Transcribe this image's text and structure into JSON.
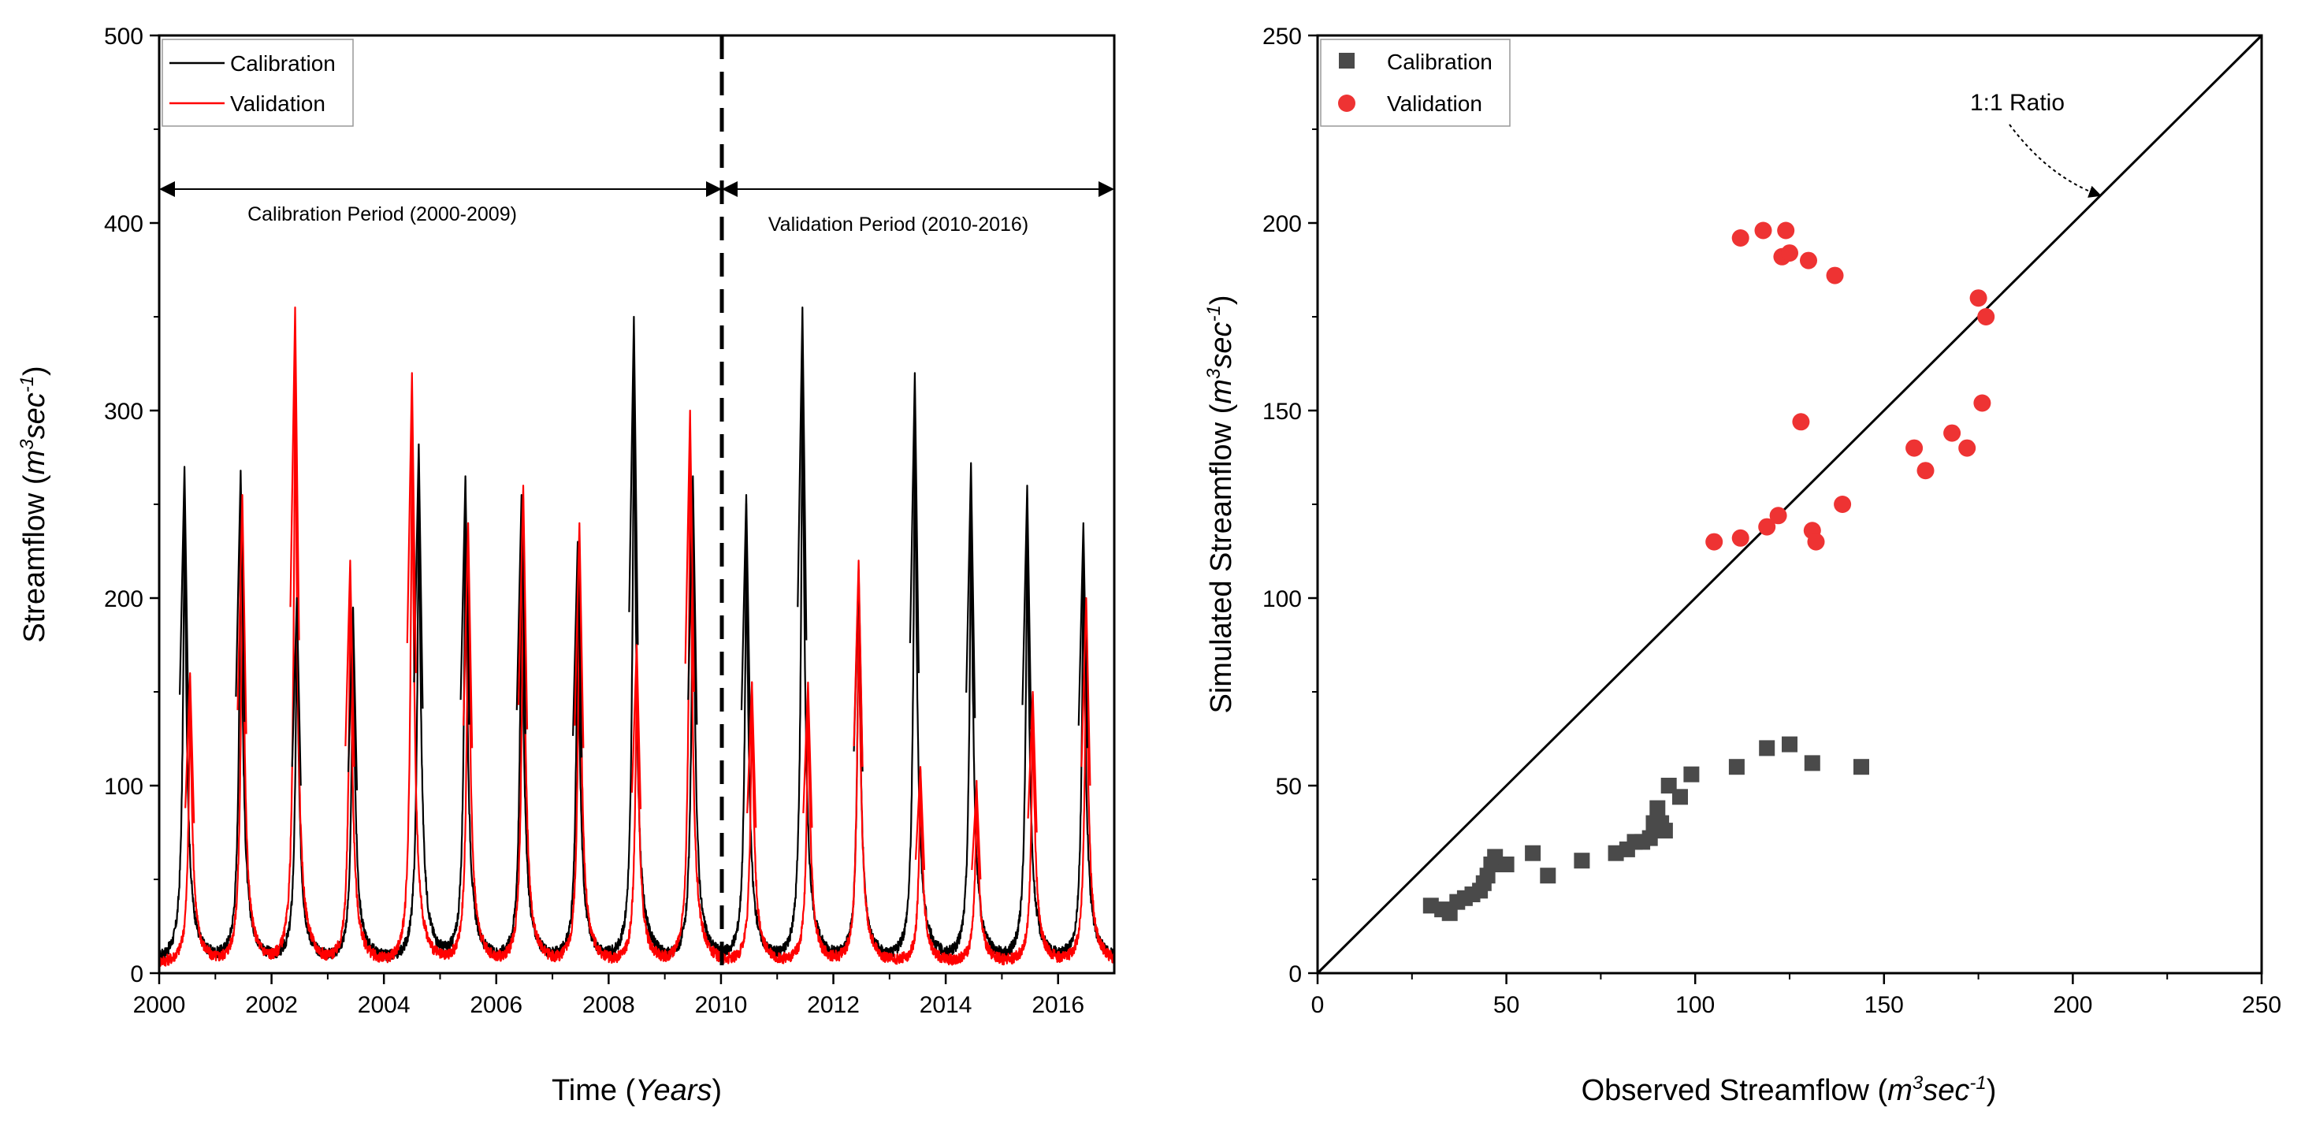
{
  "chart_data": [
    {
      "type": "line",
      "xlabel": {
        "main": "Time (",
        "italic": "Years",
        "close": ")"
      },
      "ylabel": {
        "main": "Streamflow (",
        "m": "m",
        "sup": "3",
        "sec": "sec",
        "exp": "-1",
        "close": ")"
      },
      "xlim": [
        2000,
        2017
      ],
      "ylim": [
        0,
        500
      ],
      "xticks": [
        2000,
        2002,
        2004,
        2006,
        2008,
        2010,
        2012,
        2014,
        2016
      ],
      "yticks": [
        0,
        100,
        200,
        300,
        400,
        500
      ],
      "divider_x": 2010,
      "annotations": {
        "calibration_period": "Calibration Period (2000-2009)",
        "validation_period": "Validation Period (2010-2016)"
      },
      "legend_position": "top-left",
      "series": [
        {
          "name": "Calibration",
          "color": "#000000",
          "peaks": [
            {
              "year": 2000.45,
              "peak": 270,
              "base": 8
            },
            {
              "year": 2001.45,
              "peak": 268,
              "base": 10
            },
            {
              "year": 2002.45,
              "peak": 200,
              "base": 8
            },
            {
              "year": 2003.45,
              "peak": 195,
              "base": 6
            },
            {
              "year": 2004.62,
              "peak": 282,
              "base": 6
            },
            {
              "year": 2005.45,
              "peak": 265,
              "base": 8
            },
            {
              "year": 2006.45,
              "peak": 255,
              "base": 8
            },
            {
              "year": 2007.45,
              "peak": 230,
              "base": 6
            },
            {
              "year": 2008.45,
              "peak": 350,
              "base": 6
            },
            {
              "year": 2009.5,
              "peak": 265,
              "base": 8
            },
            {
              "year": 2010.45,
              "peak": 255,
              "base": 7
            },
            {
              "year": 2011.45,
              "peak": 355,
              "base": 8
            },
            {
              "year": 2012.45,
              "peak": 215,
              "base": 8
            },
            {
              "year": 2013.45,
              "peak": 320,
              "base": 8
            },
            {
              "year": 2014.45,
              "peak": 272,
              "base": 8
            },
            {
              "year": 2015.45,
              "peak": 260,
              "base": 8
            },
            {
              "year": 2016.45,
              "peak": 240,
              "base": 10
            }
          ]
        },
        {
          "name": "Validation",
          "color": "#ff0000",
          "peaks": [
            {
              "year": 2000.55,
              "peak": 160,
              "base": 6
            },
            {
              "year": 2001.48,
              "peak": 255,
              "base": 8
            },
            {
              "year": 2002.42,
              "peak": 355,
              "base": 6
            },
            {
              "year": 2003.4,
              "peak": 220,
              "base": 5
            },
            {
              "year": 2004.5,
              "peak": 320,
              "base": 6
            },
            {
              "year": 2005.5,
              "peak": 240,
              "base": 8
            },
            {
              "year": 2006.48,
              "peak": 260,
              "base": 8
            },
            {
              "year": 2007.48,
              "peak": 240,
              "base": 6
            },
            {
              "year": 2008.5,
              "peak": 175,
              "base": 6
            },
            {
              "year": 2009.45,
              "peak": 300,
              "base": 6
            },
            {
              "year": 2010.55,
              "peak": 155,
              "base": 6
            },
            {
              "year": 2011.55,
              "peak": 155,
              "base": 6
            },
            {
              "year": 2012.45,
              "peak": 220,
              "base": 6
            },
            {
              "year": 2013.55,
              "peak": 110,
              "base": 6
            },
            {
              "year": 2014.55,
              "peak": 100,
              "base": 6
            },
            {
              "year": 2015.55,
              "peak": 150,
              "base": 6
            },
            {
              "year": 2016.5,
              "peak": 200,
              "base": 7
            }
          ]
        }
      ]
    },
    {
      "type": "scatter",
      "xlabel": {
        "main": "Observed Streamflow (",
        "m": "m",
        "sup": "3",
        "sec": "sec",
        "exp": "-1",
        "close": ")"
      },
      "ylabel": {
        "main": "Simulated Streamflow (",
        "m": "m",
        "sup": "3",
        "sec": "sec",
        "exp": "-1",
        "close": ")"
      },
      "xlim": [
        0,
        250
      ],
      "ylim": [
        0,
        250
      ],
      "xticks": [
        0,
        50,
        100,
        150,
        200,
        250
      ],
      "yticks": [
        0,
        50,
        100,
        150,
        200,
        250
      ],
      "reference_line_label": "1:1 Ratio",
      "legend_position": "top-left",
      "series": [
        {
          "name": "Calibration",
          "marker": "square",
          "color": "#4a4a4a",
          "points": [
            [
              30,
              18
            ],
            [
              33,
              17
            ],
            [
              35,
              16
            ],
            [
              37,
              19
            ],
            [
              39,
              20
            ],
            [
              41,
              21
            ],
            [
              43,
              22
            ],
            [
              44,
              24
            ],
            [
              45,
              26
            ],
            [
              46,
              29
            ],
            [
              47,
              31
            ],
            [
              50,
              29
            ],
            [
              57,
              32
            ],
            [
              61,
              26
            ],
            [
              70,
              30
            ],
            [
              79,
              32
            ],
            [
              82,
              33
            ],
            [
              84,
              35
            ],
            [
              86,
              35
            ],
            [
              88,
              36
            ],
            [
              89,
              40
            ],
            [
              90,
              44
            ],
            [
              91,
              40
            ],
            [
              92,
              38
            ],
            [
              93,
              50
            ],
            [
              96,
              47
            ],
            [
              99,
              53
            ],
            [
              111,
              55
            ],
            [
              119,
              60
            ],
            [
              125,
              61
            ],
            [
              131,
              56
            ],
            [
              144,
              55
            ]
          ]
        },
        {
          "name": "Validation",
          "marker": "circle",
          "color": "#ee3333",
          "points": [
            [
              105,
              115
            ],
            [
              112,
              116
            ],
            [
              112,
              196
            ],
            [
              118,
              198
            ],
            [
              119,
              119
            ],
            [
              122,
              122
            ],
            [
              123,
              191
            ],
            [
              124,
              198
            ],
            [
              125,
              192
            ],
            [
              128,
              147
            ],
            [
              130,
              190
            ],
            [
              131,
              118
            ],
            [
              132,
              115
            ],
            [
              137,
              186
            ],
            [
              139,
              125
            ],
            [
              158,
              140
            ],
            [
              161,
              134
            ],
            [
              168,
              144
            ],
            [
              172,
              140
            ],
            [
              175,
              180
            ],
            [
              176,
              152
            ],
            [
              177,
              175
            ]
          ]
        }
      ]
    }
  ]
}
